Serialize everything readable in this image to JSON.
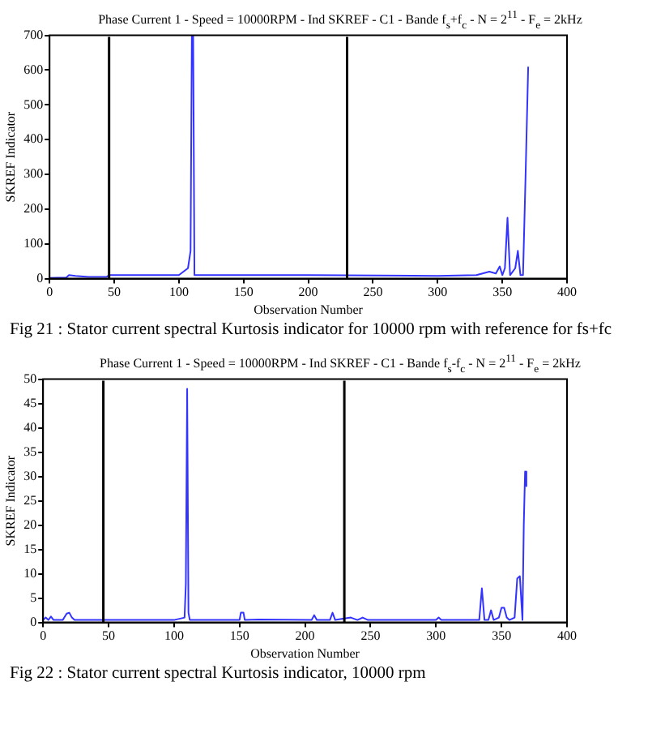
{
  "chart_data": [
    {
      "type": "line",
      "title": "Phase Current 1 - Speed = 10000RPM - Ind SKREF - C1 - Bande f$_{s}$+f$_{c}$ - N = 2$^{11}$ - F$_{e}$ = 2kHz",
      "xlabel": "Observation Number",
      "ylabel": "SKREF Indicator",
      "annotations": [
        "Fig 21 : Stator current spectral Kurtosis indicator for 10000 rpm with reference for fs+fc"
      ],
      "x": [
        0,
        13,
        15,
        20,
        30,
        44,
        46,
        100,
        107,
        109,
        110,
        111,
        112,
        200,
        300,
        330,
        340,
        345,
        348,
        350,
        352,
        354,
        356,
        360,
        362,
        364,
        366,
        368,
        370
      ],
      "series": [
        {
          "color": "#3333ff",
          "values": [
            2,
            3,
            10,
            8,
            5,
            5,
            10,
            10,
            30,
            80,
            700,
            700,
            10,
            10,
            8,
            10,
            20,
            15,
            35,
            10,
            30,
            175,
            10,
            30,
            80,
            10,
            10,
            300,
            610
          ]
        }
      ],
      "xlim": [
        0,
        400
      ],
      "xticks": [
        0,
        50,
        100,
        150,
        200,
        250,
        300,
        350,
        400
      ],
      "ylim": [
        0,
        700
      ],
      "yticks": [
        0,
        100,
        200,
        300,
        400,
        500,
        600,
        700
      ],
      "ref_lines": [
        {
          "axis": "x",
          "value": 46,
          "color": "#000000"
        },
        {
          "axis": "x",
          "value": 230,
          "color": "#000000"
        }
      ],
      "grid": false,
      "legend": false,
      "line_style": "solid",
      "marker": "none"
    },
    {
      "type": "line",
      "title": "Phase Current 1 - Speed = 10000RPM - Ind SKREF - C1 - Bande f$_{s}$-f$_{c}$ - N = 2$^{11}$ - F$_{e}$ = 2kHz",
      "xlabel": "Observation Number",
      "ylabel": "SKREF Indicator",
      "annotations": [
        "Fig 22 : Stator current spectral Kurtosis indicator, 10000 rpm"
      ],
      "x": [
        0,
        2,
        4,
        6,
        8,
        15,
        18,
        20,
        22,
        24,
        100,
        108,
        109,
        110,
        111,
        112,
        150,
        151,
        153,
        154,
        165,
        205,
        207,
        209,
        219,
        221,
        223,
        235,
        240,
        244,
        248,
        300,
        302,
        304,
        333,
        335,
        337,
        340,
        342,
        344,
        348,
        350,
        352,
        354,
        356,
        360,
        362,
        364,
        366,
        367,
        368,
        369
      ],
      "series": [
        {
          "color": "#3333ff",
          "values": [
            0.5,
            1,
            0.5,
            1.2,
            0.5,
            0.5,
            1.8,
            2,
            1,
            0.5,
            0.5,
            1,
            8,
            48,
            2,
            0.5,
            0.5,
            2,
            2,
            0.5,
            0.6,
            0.5,
            1.5,
            0.5,
            0.5,
            2,
            0.5,
            1,
            0.5,
            1,
            0.5,
            0.5,
            1,
            0.5,
            0.5,
            7,
            0.5,
            0.5,
            2.5,
            0.5,
            1,
            3,
            3,
            1,
            0.5,
            1,
            9,
            9.5,
            0.5,
            20,
            31,
            28
          ]
        }
      ],
      "xlim": [
        0,
        400
      ],
      "xticks": [
        0,
        50,
        100,
        150,
        200,
        250,
        300,
        350,
        400
      ],
      "ylim": [
        0,
        50
      ],
      "yticks": [
        0,
        5,
        10,
        15,
        20,
        25,
        30,
        35,
        40,
        45,
        50
      ],
      "ref_lines": [
        {
          "axis": "x",
          "value": 46,
          "color": "#000000"
        },
        {
          "axis": "x",
          "value": 230,
          "color": "#000000"
        }
      ],
      "grid": false,
      "legend": false,
      "line_style": "solid",
      "marker": "none"
    }
  ]
}
